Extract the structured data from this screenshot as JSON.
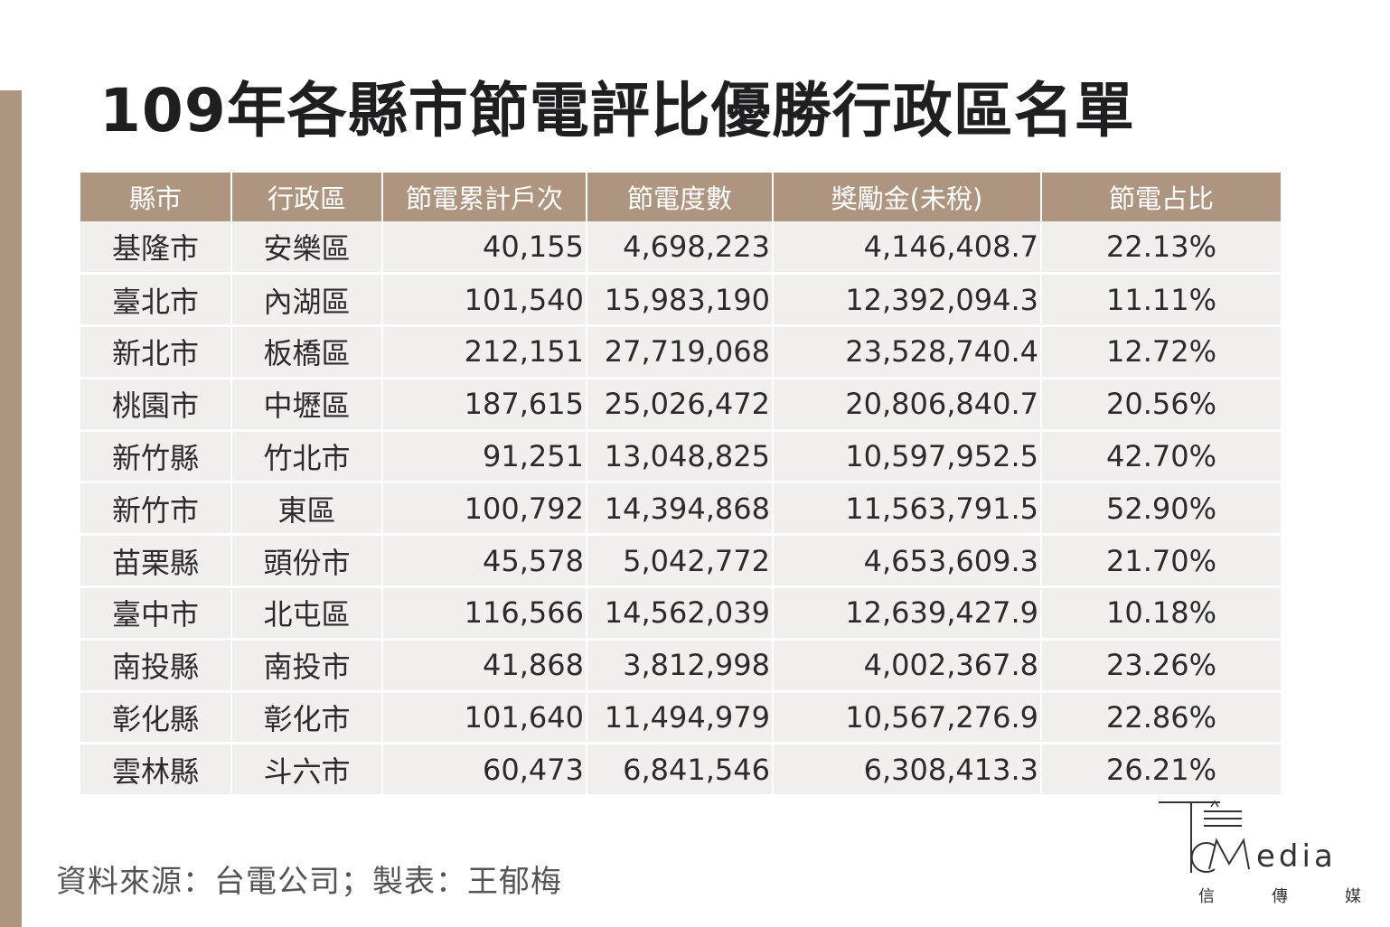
{
  "title": "109年各縣市節電評比優勝行政區名單",
  "table": {
    "headers": [
      "縣市",
      "行政區",
      "節電累計戶次",
      "節電度數",
      "獎勵金(未稅)",
      "節電占比"
    ],
    "rows": [
      {
        "county": "基隆市",
        "district": "安樂區",
        "households": "40,155",
        "kwh": "4,698,223",
        "bonus": "4,146,408.7",
        "ratio": "22.13%"
      },
      {
        "county": "臺北市",
        "district": "內湖區",
        "households": "101,540",
        "kwh": "15,983,190",
        "bonus": "12,392,094.3",
        "ratio": "11.11%"
      },
      {
        "county": "新北市",
        "district": "板橋區",
        "households": "212,151",
        "kwh": "27,719,068",
        "bonus": "23,528,740.4",
        "ratio": "12.72%"
      },
      {
        "county": "桃園市",
        "district": "中壢區",
        "households": "187,615",
        "kwh": "25,026,472",
        "bonus": "20,806,840.7",
        "ratio": "20.56%"
      },
      {
        "county": "新竹縣",
        "district": "竹北市",
        "households": "91,251",
        "kwh": "13,048,825",
        "bonus": "10,597,952.5",
        "ratio": "42.70%"
      },
      {
        "county": "新竹市",
        "district": "東區",
        "households": "100,792",
        "kwh": "14,394,868",
        "bonus": "11,563,791.5",
        "ratio": "52.90%"
      },
      {
        "county": "苗栗縣",
        "district": "頭份市",
        "households": "45,578",
        "kwh": "5,042,772",
        "bonus": "4,653,609.3",
        "ratio": "21.70%"
      },
      {
        "county": "臺中市",
        "district": "北屯區",
        "households": "116,566",
        "kwh": "14,562,039",
        "bonus": "12,639,427.9",
        "ratio": "10.18%"
      },
      {
        "county": "南投縣",
        "district": "南投市",
        "households": "41,868",
        "kwh": "3,812,998",
        "bonus": "4,002,367.8",
        "ratio": "23.26%"
      },
      {
        "county": "彰化縣",
        "district": "彰化市",
        "households": "101,640",
        "kwh": "11,494,979",
        "bonus": "10,567,276.9",
        "ratio": "22.86%"
      },
      {
        "county": "雲林縣",
        "district": "斗六市",
        "households": "60,473",
        "kwh": "6,841,546",
        "bonus": "6,308,413.3",
        "ratio": "26.21%"
      }
    ]
  },
  "footer": "資料來源：台電公司；製表：王郁梅",
  "logo": {
    "text": "edia",
    "sub": [
      "信",
      "傳",
      "媒"
    ]
  },
  "colors": {
    "accent": "#ad9580",
    "row_bg": "#f1efee",
    "title": "#1f1f22"
  }
}
